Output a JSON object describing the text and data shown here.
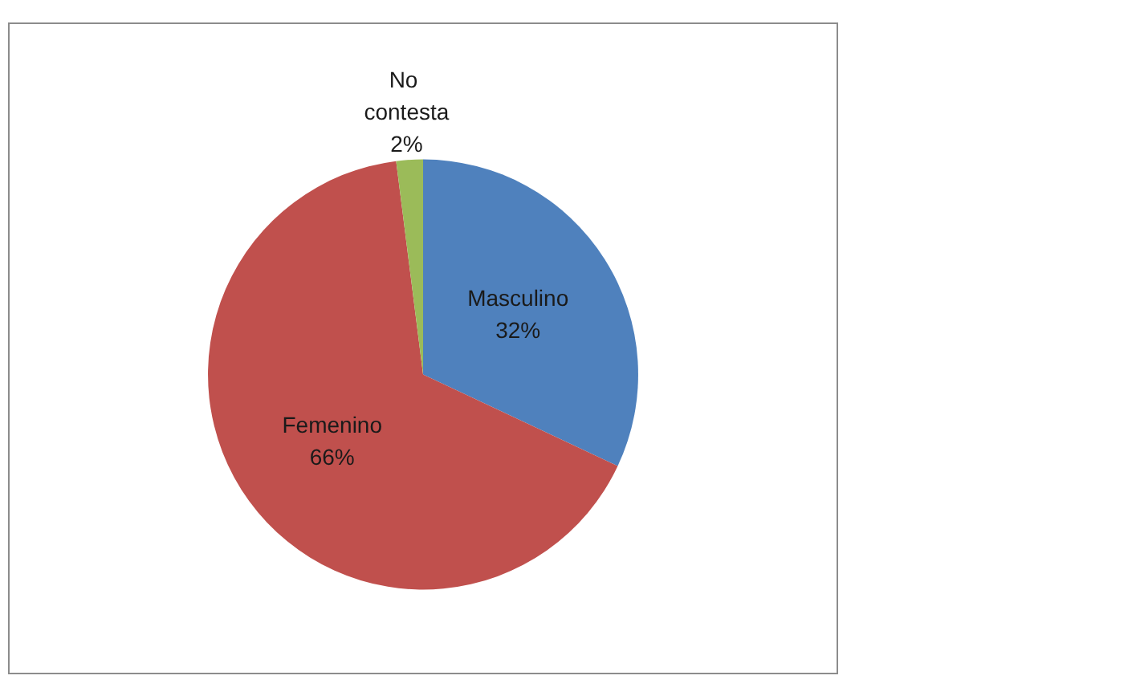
{
  "chart_data": {
    "type": "pie",
    "categories": [
      "Masculino",
      "Femenino",
      "No contesta"
    ],
    "values": [
      32,
      66,
      2
    ],
    "colors": [
      "#4f81bd",
      "#c0504d",
      "#9bbb59"
    ],
    "value_labels": [
      "32%",
      "66%",
      "2%"
    ],
    "legend": false
  }
}
